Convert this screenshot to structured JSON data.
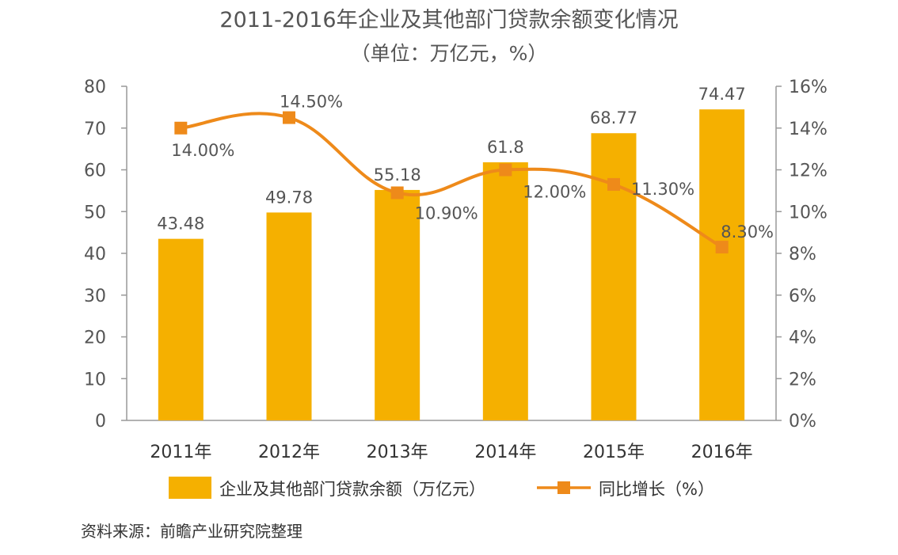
{
  "colors": {
    "bar": "#F5B000",
    "line": "#EE8A1A",
    "axis": "#999999",
    "text": "#555555"
  },
  "chart_data": {
    "type": "bar",
    "title": "2011-2016年企业及其他部门贷款余额变化情况",
    "subtitle": "（单位：万亿元，%）",
    "categories": [
      "2011年",
      "2012年",
      "2013年",
      "2014年",
      "2015年",
      "2016年"
    ],
    "series": [
      {
        "name": "企业及其他部门贷款余额（万亿元）",
        "type": "bar",
        "axis": "left",
        "values": [
          43.48,
          49.78,
          55.18,
          61.8,
          68.77,
          74.47
        ],
        "labels": [
          "43.48",
          "49.78",
          "55.18",
          "61.8",
          "68.77",
          "74.47"
        ]
      },
      {
        "name": "同比增长（%）",
        "type": "line",
        "axis": "right",
        "values": [
          14.0,
          14.5,
          10.9,
          12.0,
          11.3,
          8.3
        ],
        "labels": [
          "14.00%",
          "14.50%",
          "10.90%",
          "12.00%",
          "11.30%",
          "8.30%"
        ]
      }
    ],
    "y_left": {
      "range": [
        0,
        80
      ],
      "ticks": [
        "0",
        "10",
        "20",
        "30",
        "40",
        "50",
        "60",
        "70",
        "80"
      ]
    },
    "y_right": {
      "range": [
        0,
        16
      ],
      "ticks": [
        "0%",
        "2%",
        "4%",
        "6%",
        "8%",
        "10%",
        "12%",
        "14%",
        "16%"
      ]
    },
    "grid": false,
    "legend_position": "bottom",
    "source": "资料来源：前瞻产业研究院整理"
  }
}
